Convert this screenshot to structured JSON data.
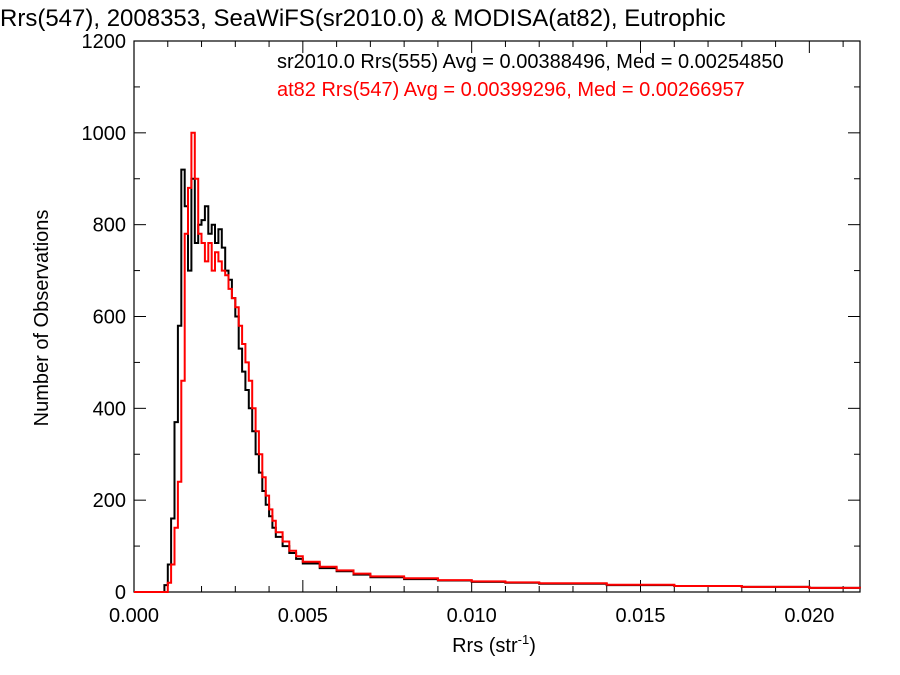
{
  "chart_data": {
    "type": "line",
    "title": "Rrs(547), 2008353, SeaWiFS(sr2010.0) & MODISA(at82), Eutrophic",
    "xlabel_main": "Rrs (str",
    "xlabel_sup": "-1",
    "xlabel_close": ")",
    "ylabel": "Number of Observations",
    "xlim": [
      0.0,
      0.0215
    ],
    "ylim": [
      0,
      1200
    ],
    "xticks": [
      0.0,
      0.005,
      0.01,
      0.015,
      0.02
    ],
    "xtick_labels": [
      "0.000",
      "0.005",
      "0.010",
      "0.015",
      "0.020"
    ],
    "yticks": [
      0,
      200,
      400,
      600,
      800,
      1000,
      1200
    ],
    "ytick_labels": [
      "0",
      "200",
      "400",
      "600",
      "800",
      "1000",
      "1200"
    ],
    "grid": false,
    "series": [
      {
        "name": "sr2010.0 Rrs(555)",
        "color": "#000000",
        "annotation": "sr2010.0 Rrs(555) Avg = 0.00388496, Med = 0.00254850",
        "points": [
          [
            0.0,
            0
          ],
          [
            0.0008,
            0
          ],
          [
            0.0009,
            15
          ],
          [
            0.001,
            60
          ],
          [
            0.0011,
            160
          ],
          [
            0.0012,
            370
          ],
          [
            0.0013,
            580
          ],
          [
            0.0014,
            920
          ],
          [
            0.0015,
            840
          ],
          [
            0.0016,
            700
          ],
          [
            0.0017,
            900
          ],
          [
            0.0018,
            760
          ],
          [
            0.0019,
            800
          ],
          [
            0.002,
            810
          ],
          [
            0.0021,
            840
          ],
          [
            0.0022,
            780
          ],
          [
            0.0023,
            800
          ],
          [
            0.0024,
            760
          ],
          [
            0.0025,
            790
          ],
          [
            0.0026,
            750
          ],
          [
            0.0027,
            700
          ],
          [
            0.0028,
            680
          ],
          [
            0.0029,
            640
          ],
          [
            0.003,
            600
          ],
          [
            0.0031,
            530
          ],
          [
            0.0032,
            480
          ],
          [
            0.0033,
            440
          ],
          [
            0.0034,
            400
          ],
          [
            0.0035,
            350
          ],
          [
            0.0036,
            300
          ],
          [
            0.0037,
            260
          ],
          [
            0.0038,
            220
          ],
          [
            0.0039,
            190
          ],
          [
            0.004,
            165
          ],
          [
            0.0041,
            140
          ],
          [
            0.0042,
            120
          ],
          [
            0.0044,
            100
          ],
          [
            0.0046,
            85
          ],
          [
            0.0048,
            72
          ],
          [
            0.005,
            62
          ],
          [
            0.0055,
            52
          ],
          [
            0.006,
            45
          ],
          [
            0.0065,
            38
          ],
          [
            0.007,
            32
          ],
          [
            0.008,
            28
          ],
          [
            0.009,
            25
          ],
          [
            0.01,
            22
          ],
          [
            0.011,
            20
          ],
          [
            0.012,
            18
          ],
          [
            0.014,
            15
          ],
          [
            0.016,
            13
          ],
          [
            0.018,
            11
          ],
          [
            0.02,
            9
          ],
          [
            0.0215,
            8
          ]
        ]
      },
      {
        "name": "at82 Rrs(547)",
        "color": "#ff0000",
        "annotation": "at82 Rrs(547) Avg = 0.00399296, Med = 0.00266957",
        "points": [
          [
            0.0,
            0
          ],
          [
            0.0009,
            0
          ],
          [
            0.001,
            20
          ],
          [
            0.0011,
            60
          ],
          [
            0.0012,
            140
          ],
          [
            0.0013,
            240
          ],
          [
            0.0014,
            460
          ],
          [
            0.0015,
            780
          ],
          [
            0.0016,
            880
          ],
          [
            0.0017,
            1000
          ],
          [
            0.0018,
            900
          ],
          [
            0.0019,
            780
          ],
          [
            0.002,
            760
          ],
          [
            0.0021,
            720
          ],
          [
            0.0022,
            760
          ],
          [
            0.0023,
            700
          ],
          [
            0.0024,
            740
          ],
          [
            0.0025,
            720
          ],
          [
            0.0026,
            700
          ],
          [
            0.0027,
            690
          ],
          [
            0.0028,
            660
          ],
          [
            0.0029,
            640
          ],
          [
            0.003,
            620
          ],
          [
            0.0031,
            580
          ],
          [
            0.0032,
            540
          ],
          [
            0.0033,
            500
          ],
          [
            0.0034,
            460
          ],
          [
            0.0035,
            400
          ],
          [
            0.0036,
            350
          ],
          [
            0.0037,
            300
          ],
          [
            0.0038,
            250
          ],
          [
            0.0039,
            210
          ],
          [
            0.004,
            180
          ],
          [
            0.0041,
            155
          ],
          [
            0.0042,
            130
          ],
          [
            0.0044,
            110
          ],
          [
            0.0046,
            90
          ],
          [
            0.0048,
            78
          ],
          [
            0.005,
            66
          ],
          [
            0.0055,
            55
          ],
          [
            0.006,
            47
          ],
          [
            0.0065,
            40
          ],
          [
            0.007,
            34
          ],
          [
            0.008,
            30
          ],
          [
            0.009,
            26
          ],
          [
            0.01,
            23
          ],
          [
            0.011,
            21
          ],
          [
            0.012,
            19
          ],
          [
            0.014,
            16
          ],
          [
            0.016,
            13
          ],
          [
            0.018,
            11
          ],
          [
            0.02,
            9
          ],
          [
            0.0215,
            8
          ]
        ]
      }
    ]
  }
}
